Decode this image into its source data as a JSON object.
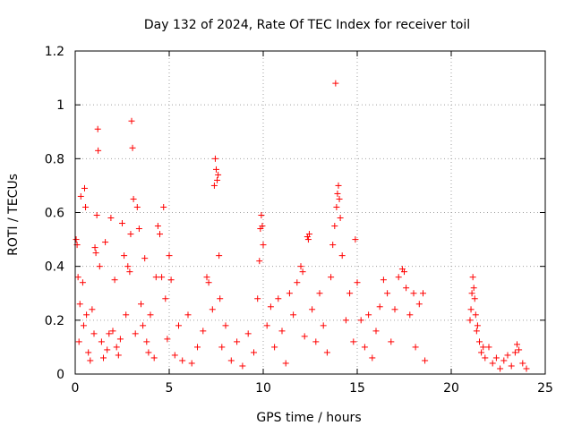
{
  "chart_data": {
    "type": "scatter",
    "title": "Day 132 of 2024, Rate Of TEC Index for receiver toil",
    "xlabel": "GPS time / hours",
    "ylabel": "ROTI / TECUs",
    "xlim": [
      0,
      25
    ],
    "ylim": [
      0,
      1.2
    ],
    "xticks": [
      0,
      5,
      10,
      15,
      20,
      25
    ],
    "xtick_labels": [
      "0",
      "5",
      "10",
      "15",
      "20",
      "25"
    ],
    "yticks": [
      0,
      0.2,
      0.4,
      0.6,
      0.8,
      1.0,
      1.2
    ],
    "ytick_labels": [
      "0",
      "0.2",
      "0.4",
      "0.6",
      "0.8",
      "1",
      "1.2"
    ],
    "grid": true,
    "marker": "+",
    "color": "#ff0000",
    "series": [
      {
        "name": "ROTI",
        "points": [
          [
            0.05,
            0.5
          ],
          [
            0.1,
            0.48
          ],
          [
            0.15,
            0.36
          ],
          [
            0.2,
            0.12
          ],
          [
            0.25,
            0.26
          ],
          [
            0.3,
            0.66
          ],
          [
            0.4,
            0.34
          ],
          [
            0.45,
            0.18
          ],
          [
            0.5,
            0.69
          ],
          [
            0.55,
            0.62
          ],
          [
            0.6,
            0.22
          ],
          [
            0.7,
            0.08
          ],
          [
            0.8,
            0.05
          ],
          [
            0.9,
            0.24
          ],
          [
            1.0,
            0.15
          ],
          [
            1.05,
            0.47
          ],
          [
            1.1,
            0.45
          ],
          [
            1.15,
            0.59
          ],
          [
            1.2,
            0.91
          ],
          [
            1.22,
            0.83
          ],
          [
            1.3,
            0.4
          ],
          [
            1.4,
            0.12
          ],
          [
            1.5,
            0.06
          ],
          [
            1.6,
            0.49
          ],
          [
            1.7,
            0.09
          ],
          [
            1.8,
            0.15
          ],
          [
            1.9,
            0.58
          ],
          [
            2.0,
            0.16
          ],
          [
            2.1,
            0.35
          ],
          [
            2.2,
            0.1
          ],
          [
            2.3,
            0.07
          ],
          [
            2.4,
            0.13
          ],
          [
            2.5,
            0.56
          ],
          [
            2.6,
            0.44
          ],
          [
            2.7,
            0.22
          ],
          [
            2.8,
            0.4
          ],
          [
            2.9,
            0.38
          ],
          [
            2.95,
            0.52
          ],
          [
            3.0,
            0.94
          ],
          [
            3.05,
            0.84
          ],
          [
            3.1,
            0.65
          ],
          [
            3.2,
            0.15
          ],
          [
            3.3,
            0.62
          ],
          [
            3.4,
            0.54
          ],
          [
            3.5,
            0.26
          ],
          [
            3.6,
            0.18
          ],
          [
            3.7,
            0.43
          ],
          [
            3.8,
            0.12
          ],
          [
            3.9,
            0.08
          ],
          [
            4.0,
            0.22
          ],
          [
            4.2,
            0.06
          ],
          [
            4.3,
            0.36
          ],
          [
            4.4,
            0.55
          ],
          [
            4.5,
            0.52
          ],
          [
            4.6,
            0.36
          ],
          [
            4.7,
            0.62
          ],
          [
            4.8,
            0.28
          ],
          [
            4.9,
            0.13
          ],
          [
            5.0,
            0.44
          ],
          [
            5.1,
            0.35
          ],
          [
            5.3,
            0.07
          ],
          [
            5.5,
            0.18
          ],
          [
            5.7,
            0.05
          ],
          [
            6.0,
            0.22
          ],
          [
            6.2,
            0.04
          ],
          [
            6.5,
            0.1
          ],
          [
            6.8,
            0.16
          ],
          [
            7.0,
            0.36
          ],
          [
            7.1,
            0.34
          ],
          [
            7.3,
            0.24
          ],
          [
            7.4,
            0.7
          ],
          [
            7.45,
            0.8
          ],
          [
            7.5,
            0.76
          ],
          [
            7.55,
            0.72
          ],
          [
            7.6,
            0.74
          ],
          [
            7.65,
            0.44
          ],
          [
            7.7,
            0.28
          ],
          [
            7.8,
            0.1
          ],
          [
            8.0,
            0.18
          ],
          [
            8.3,
            0.05
          ],
          [
            8.6,
            0.12
          ],
          [
            8.9,
            0.03
          ],
          [
            9.2,
            0.15
          ],
          [
            9.5,
            0.08
          ],
          [
            9.7,
            0.28
          ],
          [
            9.8,
            0.42
          ],
          [
            9.85,
            0.54
          ],
          [
            9.9,
            0.59
          ],
          [
            9.95,
            0.55
          ],
          [
            10.0,
            0.48
          ],
          [
            10.2,
            0.18
          ],
          [
            10.4,
            0.25
          ],
          [
            10.6,
            0.1
          ],
          [
            10.8,
            0.28
          ],
          [
            11.0,
            0.16
          ],
          [
            11.2,
            0.04
          ],
          [
            11.4,
            0.3
          ],
          [
            11.6,
            0.22
          ],
          [
            11.8,
            0.34
          ],
          [
            12.0,
            0.4
          ],
          [
            12.1,
            0.38
          ],
          [
            12.2,
            0.14
          ],
          [
            12.35,
            0.51
          ],
          [
            12.4,
            0.5
          ],
          [
            12.45,
            0.52
          ],
          [
            12.6,
            0.24
          ],
          [
            12.8,
            0.12
          ],
          [
            13.0,
            0.3
          ],
          [
            13.2,
            0.18
          ],
          [
            13.4,
            0.08
          ],
          [
            13.6,
            0.36
          ],
          [
            13.7,
            0.48
          ],
          [
            13.8,
            0.55
          ],
          [
            13.85,
            1.08
          ],
          [
            13.9,
            0.62
          ],
          [
            13.95,
            0.67
          ],
          [
            14.0,
            0.7
          ],
          [
            14.05,
            0.65
          ],
          [
            14.1,
            0.58
          ],
          [
            14.2,
            0.44
          ],
          [
            14.4,
            0.2
          ],
          [
            14.6,
            0.3
          ],
          [
            14.8,
            0.12
          ],
          [
            14.9,
            0.5
          ],
          [
            15.0,
            0.34
          ],
          [
            15.2,
            0.2
          ],
          [
            15.4,
            0.1
          ],
          [
            15.6,
            0.22
          ],
          [
            15.8,
            0.06
          ],
          [
            16.0,
            0.16
          ],
          [
            16.2,
            0.25
          ],
          [
            16.4,
            0.35
          ],
          [
            16.6,
            0.3
          ],
          [
            16.8,
            0.12
          ],
          [
            17.0,
            0.24
          ],
          [
            17.2,
            0.36
          ],
          [
            17.4,
            0.39
          ],
          [
            17.5,
            0.38
          ],
          [
            17.6,
            0.32
          ],
          [
            17.8,
            0.22
          ],
          [
            18.0,
            0.3
          ],
          [
            18.1,
            0.1
          ],
          [
            18.3,
            0.26
          ],
          [
            18.5,
            0.3
          ],
          [
            18.6,
            0.05
          ],
          [
            21.0,
            0.2
          ],
          [
            21.05,
            0.24
          ],
          [
            21.1,
            0.3
          ],
          [
            21.15,
            0.36
          ],
          [
            21.2,
            0.32
          ],
          [
            21.25,
            0.28
          ],
          [
            21.3,
            0.22
          ],
          [
            21.35,
            0.16
          ],
          [
            21.4,
            0.18
          ],
          [
            21.5,
            0.12
          ],
          [
            21.6,
            0.08
          ],
          [
            21.7,
            0.1
          ],
          [
            21.8,
            0.06
          ],
          [
            22.0,
            0.1
          ],
          [
            22.2,
            0.04
          ],
          [
            22.4,
            0.06
          ],
          [
            22.6,
            0.02
          ],
          [
            22.8,
            0.05
          ],
          [
            23.0,
            0.07
          ],
          [
            23.2,
            0.03
          ],
          [
            23.4,
            0.08
          ],
          [
            23.5,
            0.11
          ],
          [
            23.6,
            0.09
          ],
          [
            23.8,
            0.04
          ],
          [
            24.0,
            0.02
          ]
        ]
      }
    ]
  }
}
